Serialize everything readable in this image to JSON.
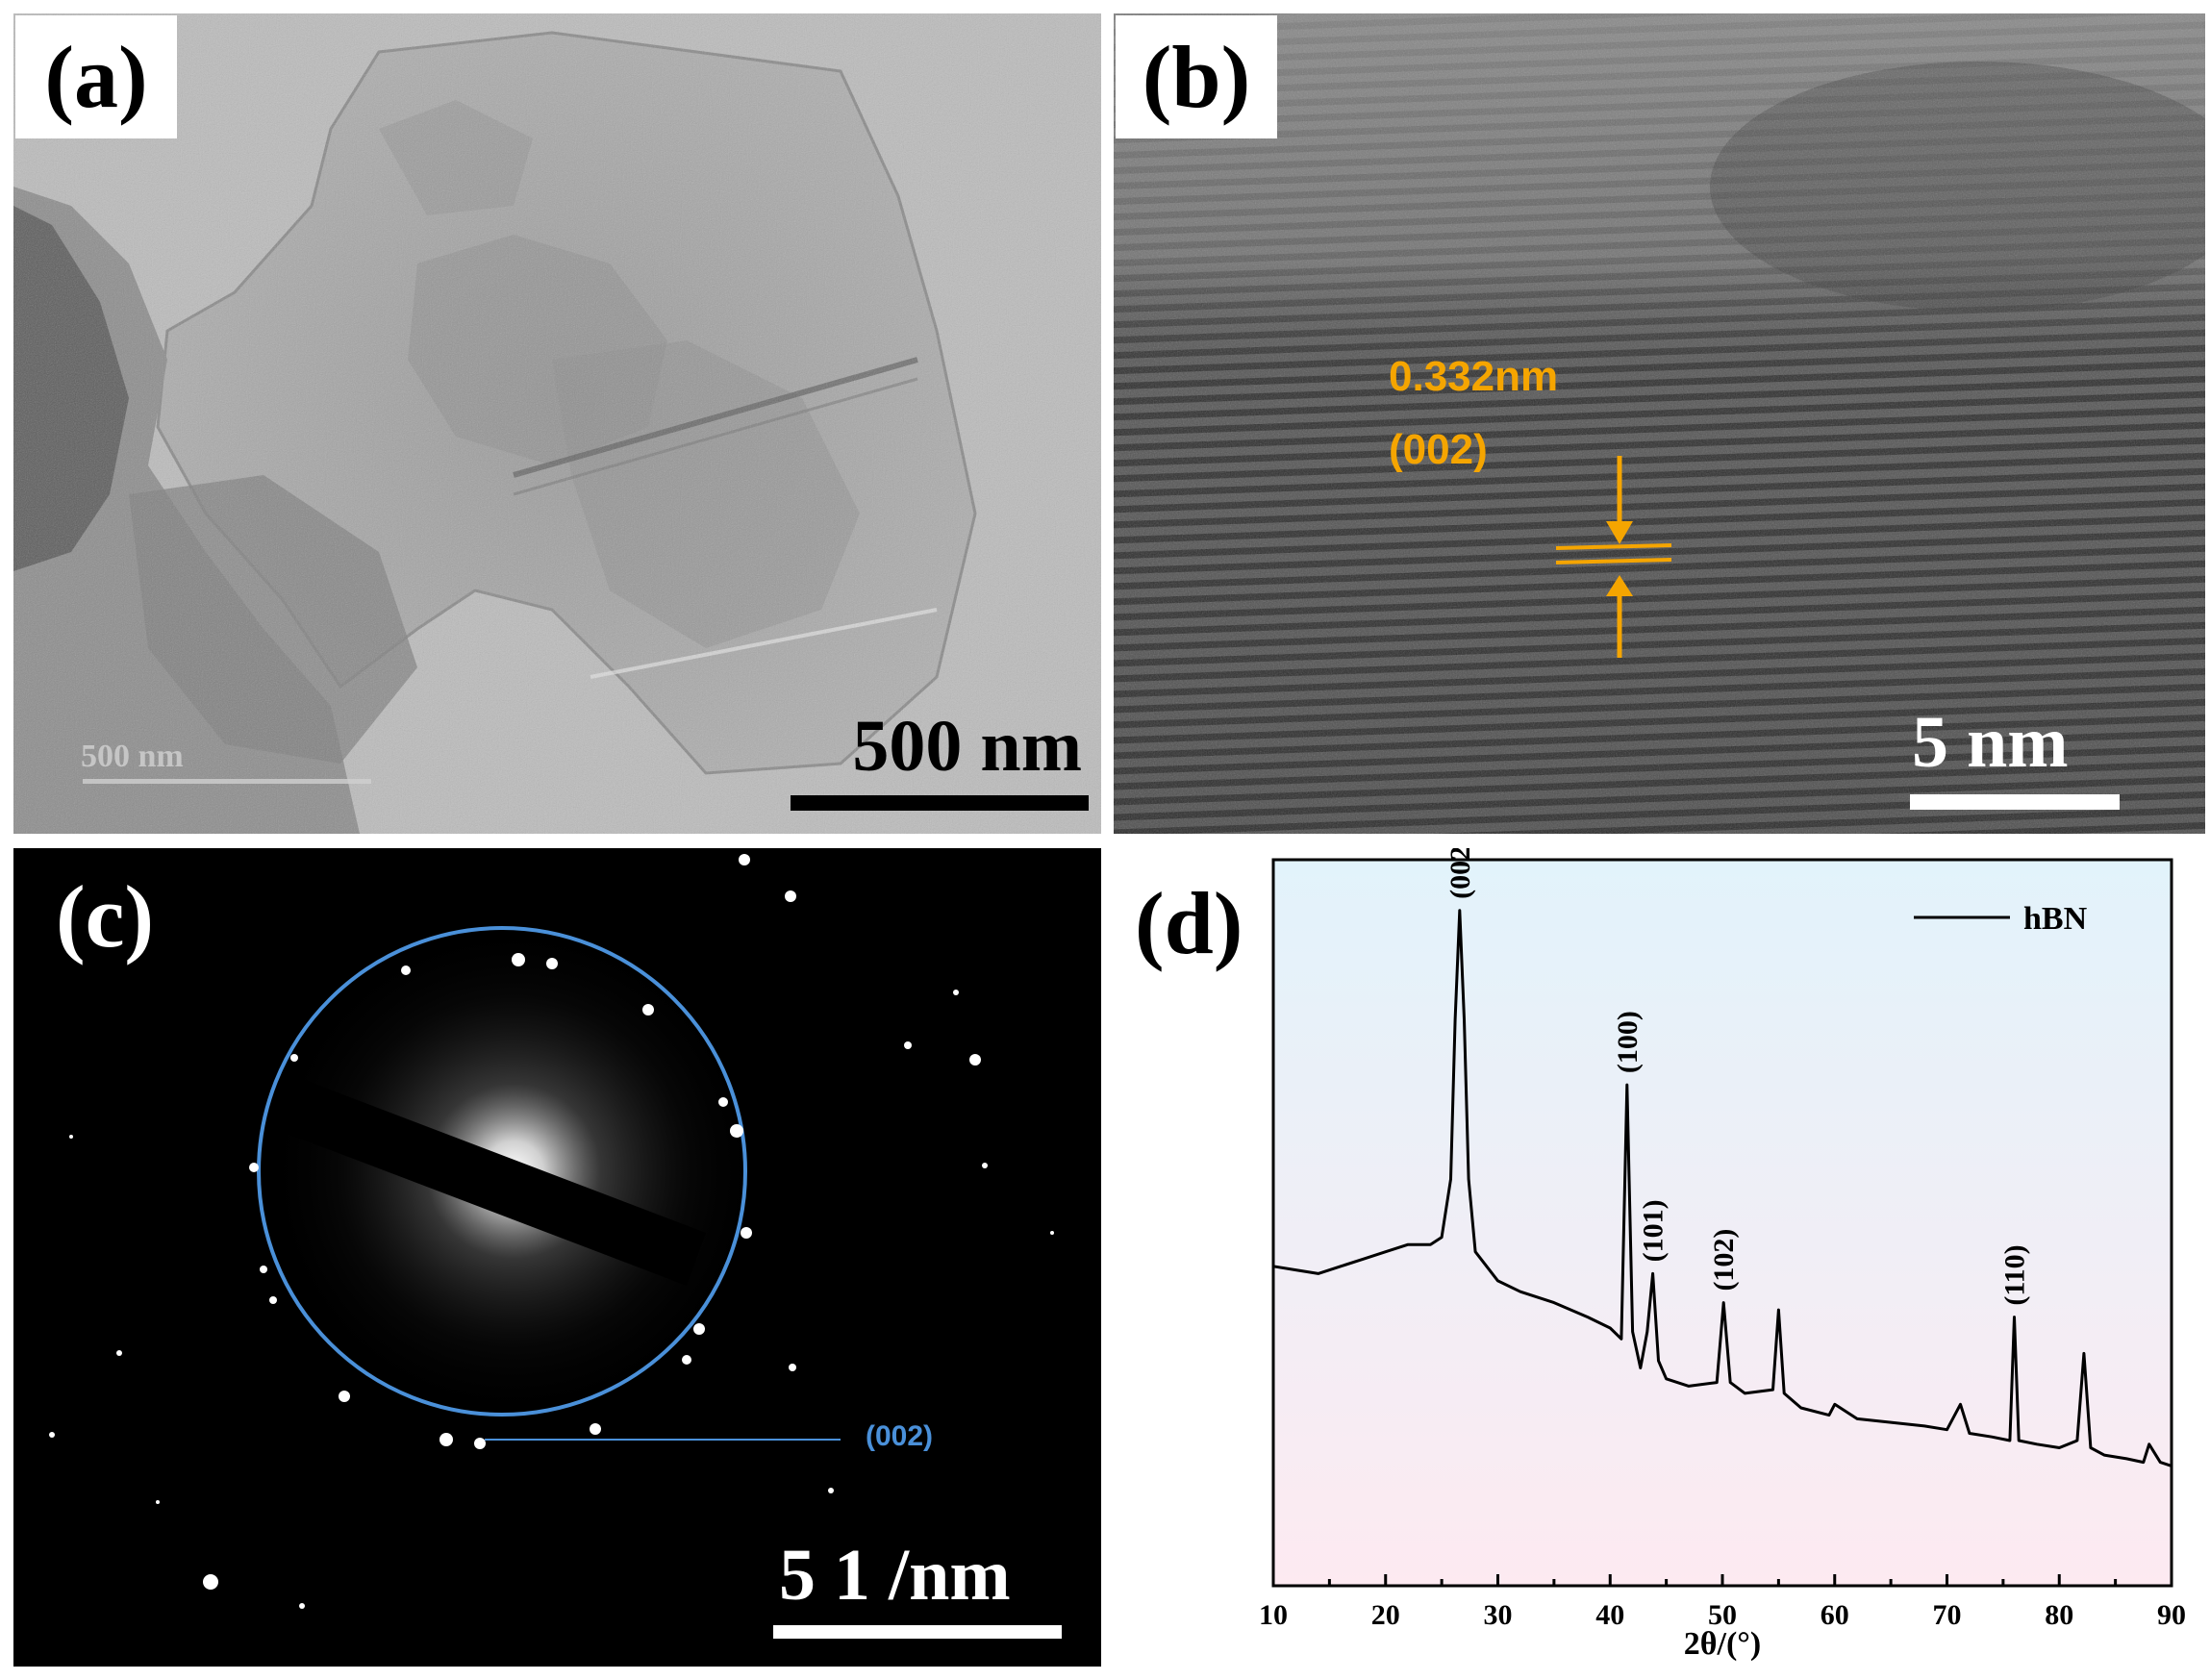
{
  "panels": {
    "a": {
      "label": "(a)",
      "scale_bar_text": "500 nm",
      "embedded_scale_text": "500 nm"
    },
    "b": {
      "label": "(b)",
      "scale_bar_text": "5 nm",
      "spacing_value": "0.332nm",
      "spacing_plane": "(002)",
      "annotation_color": "#f5a500"
    },
    "c": {
      "label": "(c)",
      "scale_bar_text": "5 1 /nm",
      "ring_label": "(002)",
      "ring_color": "#4a90d9"
    },
    "d": {
      "label": "(d)",
      "legend_label": "hBN",
      "x_axis_label": "2θ/(°)",
      "x_ticks": [
        "10",
        "20",
        "30",
        "40",
        "50",
        "60",
        "70",
        "80",
        "90"
      ],
      "background_top_color": "#e2f3fb",
      "background_bottom_color": "#fdeaf1"
    }
  },
  "chart_data": {
    "type": "line",
    "xlabel": "2θ/(°)",
    "ylabel": "",
    "xlim": [
      10,
      90
    ],
    "ylim": [
      0,
      1
    ],
    "grid": false,
    "legend_position": "top-right",
    "series": [
      {
        "name": "hBN",
        "x": [
          10,
          12,
          14,
          16,
          18,
          20,
          22,
          24,
          25,
          25.8,
          26.2,
          26.6,
          27.0,
          27.4,
          28,
          30,
          32,
          35,
          38,
          40,
          41.0,
          41.5,
          42.0,
          42.7,
          43.3,
          43.8,
          44.3,
          45,
          47,
          49.5,
          50.1,
          50.7,
          52,
          54.5,
          55.0,
          55.5,
          57,
          59.5,
          60,
          62,
          65,
          68,
          70,
          71.2,
          72,
          74,
          75.6,
          76.0,
          76.4,
          78,
          80,
          81.6,
          82.2,
          82.8,
          84,
          86,
          87.5,
          88,
          89,
          90
        ],
        "y": [
          0.44,
          0.435,
          0.43,
          0.44,
          0.45,
          0.46,
          0.47,
          0.47,
          0.48,
          0.56,
          0.78,
          0.93,
          0.78,
          0.56,
          0.46,
          0.42,
          0.405,
          0.39,
          0.37,
          0.355,
          0.34,
          0.69,
          0.35,
          0.3,
          0.35,
          0.43,
          0.31,
          0.285,
          0.275,
          0.28,
          0.39,
          0.28,
          0.265,
          0.27,
          0.38,
          0.265,
          0.245,
          0.235,
          0.25,
          0.23,
          0.225,
          0.22,
          0.215,
          0.25,
          0.21,
          0.205,
          0.2,
          0.37,
          0.2,
          0.195,
          0.19,
          0.2,
          0.32,
          0.19,
          0.18,
          0.175,
          0.17,
          0.195,
          0.17,
          0.165
        ]
      }
    ],
    "annotations": [
      {
        "text": "(002)",
        "x": 26.6
      },
      {
        "text": "(100)",
        "x": 41.5
      },
      {
        "text": "(101)",
        "x": 43.8
      },
      {
        "text": "(102)",
        "x": 50.1
      },
      {
        "text": "(110)",
        "x": 76.0
      }
    ]
  }
}
